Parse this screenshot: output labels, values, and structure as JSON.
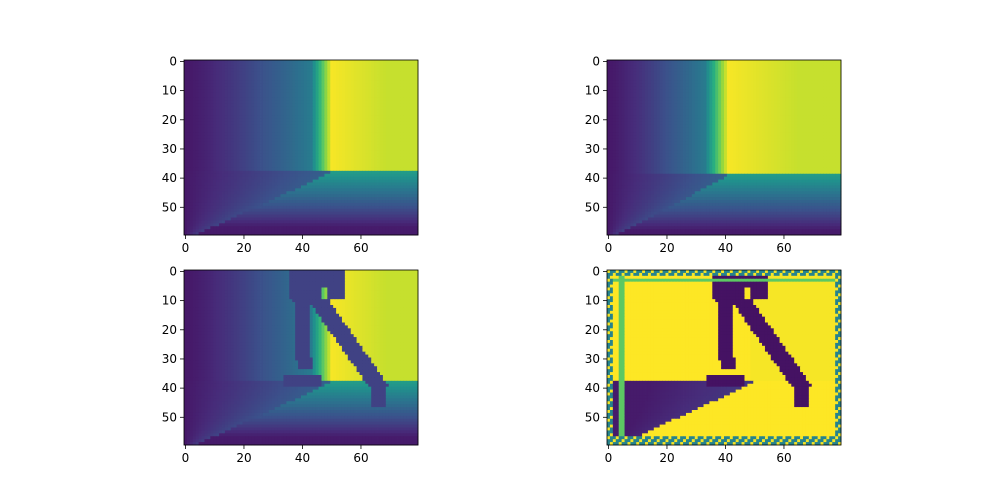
{
  "chart_data": [
    {
      "type": "heatmap",
      "panel": "top-left",
      "title": "",
      "colormap": "viridis",
      "shape": [
        60,
        80
      ],
      "value_range": [
        0,
        1
      ],
      "xlim": [
        -0.5,
        79.5
      ],
      "ylim": [
        59.5,
        -0.5
      ],
      "xticks": [
        0,
        20,
        40,
        60
      ],
      "yticks": [
        0,
        10,
        20,
        30,
        40,
        50
      ],
      "scene": {
        "wall_corner_x": 50,
        "floor_line_y": 38,
        "bright_band_width": 7,
        "wall_max": 0.92,
        "far_wall_value": 0.99,
        "wall_gradient_mid": 0.42,
        "floor_top_value": 0.55,
        "person": false,
        "edge_filter": false
      }
    },
    {
      "type": "heatmap",
      "panel": "top-right",
      "title": "",
      "colormap": "viridis",
      "shape": [
        60,
        80
      ],
      "value_range": [
        0,
        1
      ],
      "xlim": [
        -0.5,
        79.5
      ],
      "ylim": [
        59.5,
        -0.5
      ],
      "xticks": [
        0,
        20,
        40,
        60
      ],
      "yticks": [
        0,
        10,
        20,
        30,
        40,
        50
      ],
      "scene": {
        "wall_corner_x": 41,
        "floor_line_y": 39,
        "bright_band_width": 8,
        "wall_max": 0.92,
        "far_wall_value": 0.99,
        "wall_gradient_mid": 0.42,
        "floor_top_value": 0.55,
        "person": false,
        "edge_filter": false
      }
    },
    {
      "type": "heatmap",
      "panel": "bottom-left",
      "title": "",
      "colormap": "viridis",
      "shape": [
        60,
        80
      ],
      "value_range": [
        0,
        1
      ],
      "xlim": [
        -0.5,
        79.5
      ],
      "ylim": [
        59.5,
        -0.5
      ],
      "xticks": [
        0,
        20,
        40,
        60
      ],
      "yticks": [
        0,
        10,
        20,
        30,
        40,
        50
      ],
      "scene": {
        "wall_corner_x": 50,
        "floor_line_y": 38,
        "bright_band_width": 7,
        "wall_max": 0.92,
        "far_wall_value": 0.99,
        "wall_gradient_mid": 0.42,
        "floor_top_value": 0.55,
        "person": true,
        "person_value": 0.2,
        "edge_filter": false
      }
    },
    {
      "type": "heatmap",
      "panel": "bottom-right",
      "title": "",
      "colormap": "viridis",
      "shape": [
        60,
        80
      ],
      "value_range": [
        0,
        1
      ],
      "xlim": [
        -0.5,
        79.5
      ],
      "ylim": [
        59.5,
        -0.5
      ],
      "xticks": [
        0,
        20,
        40,
        60
      ],
      "yticks": [
        0,
        10,
        20,
        30,
        40,
        50
      ],
      "scene": {
        "wall_corner_x": 50,
        "floor_line_y": 38,
        "bright_band_width": 7,
        "person": true,
        "person_value": 0.05,
        "edge_filter": true
      }
    }
  ]
}
